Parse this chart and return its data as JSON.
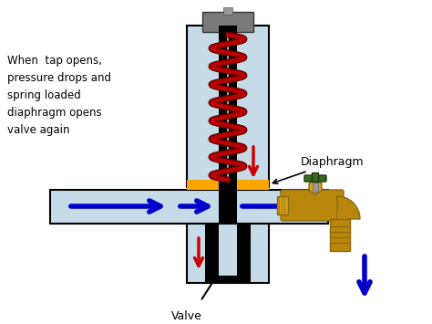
{
  "bg_color": "#ffffff",
  "light_blue": "#c5dce8",
  "dark_blue": "#0000cc",
  "red": "#cc0000",
  "orange": "#ffa500",
  "black": "#000000",
  "gray": "#7a7a7a",
  "spring_red": "#bb0000",
  "spring_dark": "#660000",
  "text_label_left": "When  tap opens,\npressure drops and\nspring loaded\ndiaphragm opens\nvalve again",
  "text_diaphragm": "Diaphragm",
  "text_valve": "Valve",
  "figsize": [
    4.74,
    3.55
  ],
  "dpi": 100
}
